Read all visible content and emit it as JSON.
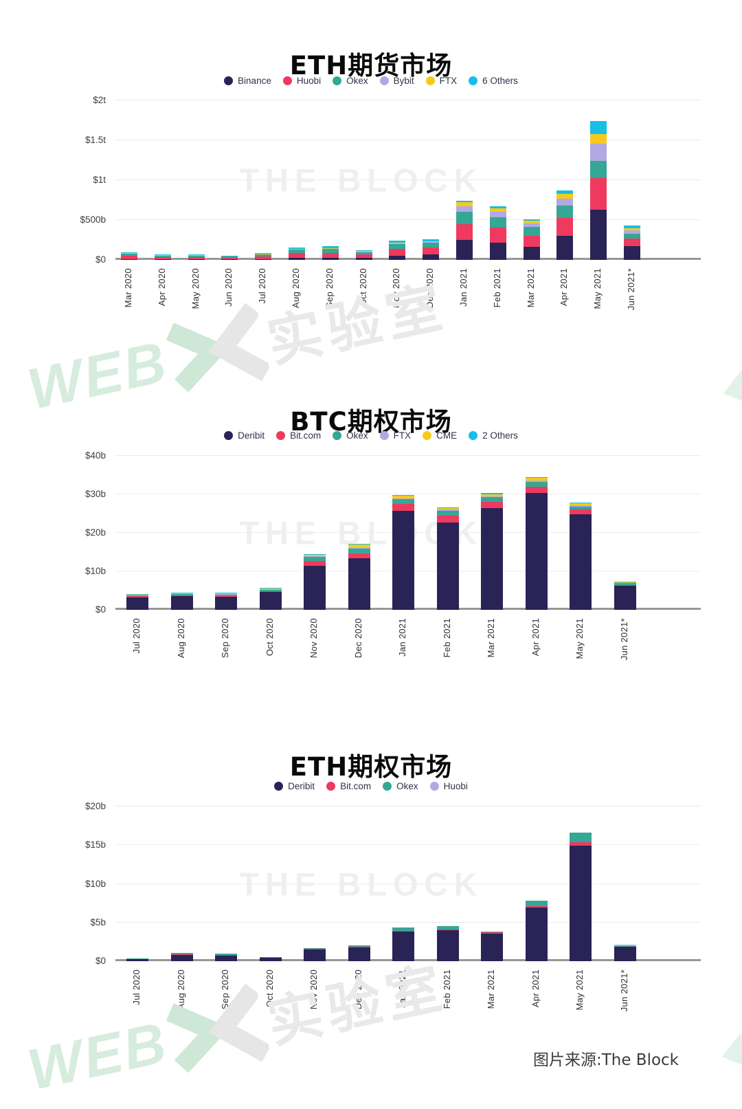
{
  "page": {
    "source_note": "图片来源:The Block",
    "block_watermark": "THE BLOCK",
    "webx_watermark": {
      "web": "WEB",
      "lab": "实验室"
    }
  },
  "colors": {
    "navy": "#2a2356",
    "pink": "#ee3a5e",
    "teal": "#35a795",
    "lavender": "#b2a9e2",
    "yellow": "#f6ca1c",
    "cyan": "#16bfe6",
    "gridline": "#ececec",
    "axis_line": "#979797"
  },
  "chart_data": [
    {
      "type": "bar",
      "stacked": true,
      "title": "ETH期货市场",
      "unit": "USD billions",
      "legend_position": "top",
      "grid": true,
      "ylim": [
        0,
        2000
      ],
      "yticks": [
        {
          "label": "$2t",
          "value": 2000
        },
        {
          "label": "$1.5t",
          "value": 1500
        },
        {
          "label": "$1t",
          "value": 1000
        },
        {
          "label": "$500b",
          "value": 500
        },
        {
          "label": "$0",
          "value": 0
        }
      ],
      "categories": [
        "Mar 2020",
        "Apr 2020",
        "May 2020",
        "Jun 2020",
        "Jul 2020",
        "Aug 2020",
        "Sep 2020",
        "Oct 2020",
        "Nov 2020",
        "Dec 2020",
        "Jan 2021",
        "Feb 2021",
        "Mar 2021",
        "Apr 2021",
        "May 2021",
        "Jun 2021*"
      ],
      "series": [
        {
          "name": "Binance",
          "color": "#2a2356",
          "values": [
            8,
            7,
            7,
            6,
            10,
            25,
            30,
            22,
            55,
            70,
            250,
            215,
            165,
            300,
            630,
            175
          ]
        },
        {
          "name": "Huobi",
          "color": "#ee3a5e",
          "values": [
            40,
            28,
            28,
            22,
            35,
            60,
            60,
            45,
            85,
            85,
            200,
            190,
            140,
            230,
            400,
            90
          ]
        },
        {
          "name": "Okex",
          "color": "#35a795",
          "values": [
            35,
            22,
            24,
            18,
            28,
            45,
            45,
            35,
            60,
            60,
            150,
            130,
            105,
            155,
            215,
            60
          ]
        },
        {
          "name": "Bybit",
          "color": "#b2a9e2",
          "values": [
            0,
            0,
            0,
            0,
            0,
            5,
            8,
            5,
            10,
            12,
            70,
            65,
            45,
            80,
            215,
            45
          ]
        },
        {
          "name": "FTX",
          "color": "#f6ca1c",
          "values": [
            2,
            2,
            2,
            2,
            3,
            5,
            7,
            4,
            8,
            8,
            50,
            45,
            35,
            60,
            120,
            30
          ]
        },
        {
          "name": "6 Others",
          "color": "#16bfe6",
          "values": [
            12,
            10,
            10,
            7,
            10,
            15,
            25,
            10,
            20,
            25,
            20,
            30,
            20,
            45,
            160,
            35
          ]
        }
      ]
    },
    {
      "type": "bar",
      "stacked": true,
      "title": "BTC期权市场",
      "unit": "USD billions",
      "legend_position": "top",
      "grid": true,
      "ylim": [
        0,
        40
      ],
      "yticks": [
        {
          "label": "$40b",
          "value": 40
        },
        {
          "label": "$30b",
          "value": 30
        },
        {
          "label": "$20b",
          "value": 20
        },
        {
          "label": "$10b",
          "value": 10
        },
        {
          "label": "$0",
          "value": 0
        }
      ],
      "categories": [
        "Jul 2020",
        "Aug 2020",
        "Sep 2020",
        "Oct 2020",
        "Nov 2020",
        "Dec 2020",
        "Jan 2021",
        "Feb 2021",
        "Mar 2021",
        "Apr 2021",
        "May 2021",
        "Jun 2021*"
      ],
      "series": [
        {
          "name": "Deribit",
          "color": "#2a2356",
          "values": [
            3.3,
            3.6,
            3.4,
            4.6,
            11.5,
            13.4,
            25.8,
            22.7,
            26.5,
            30.4,
            24.8,
            6.2
          ]
        },
        {
          "name": "Bit.com",
          "color": "#ee3a5e",
          "values": [
            0.2,
            0.1,
            0.2,
            0.2,
            1.2,
            1.2,
            1.7,
            1.8,
            1.5,
            1.6,
            1.2,
            0.3
          ]
        },
        {
          "name": "Okex",
          "color": "#35a795",
          "values": [
            0.4,
            0.5,
            0.4,
            0.5,
            1.0,
            1.3,
            1.2,
            1.2,
            1.2,
            1.2,
            0.8,
            0.5
          ]
        },
        {
          "name": "FTX",
          "color": "#b2a9e2",
          "values": [
            0.05,
            0.05,
            0.1,
            0.1,
            0.2,
            0.2,
            0.3,
            0.3,
            0.3,
            0.4,
            0.3,
            0.1
          ]
        },
        {
          "name": "CME",
          "color": "#f6ca1c",
          "values": [
            0.05,
            0.1,
            0.3,
            0.3,
            0.5,
            0.8,
            0.6,
            0.4,
            0.5,
            0.6,
            0.5,
            0.1
          ]
        },
        {
          "name": "2 Others",
          "color": "#16bfe6",
          "values": [
            0.05,
            0.05,
            0.1,
            0.1,
            0.1,
            0.2,
            0.2,
            0.2,
            0.3,
            0.3,
            0.2,
            0.2
          ]
        }
      ]
    },
    {
      "type": "bar",
      "stacked": true,
      "title": "ETH期权市场",
      "unit": "USD billions",
      "legend_position": "top",
      "grid": true,
      "ylim": [
        0,
        20
      ],
      "yticks": [
        {
          "label": "$20b",
          "value": 20
        },
        {
          "label": "$15b",
          "value": 15
        },
        {
          "label": "$10b",
          "value": 10
        },
        {
          "label": "$5b",
          "value": 5
        },
        {
          "label": "$0",
          "value": 0
        }
      ],
      "categories": [
        "Jul 2020",
        "Aug 2020",
        "Sep 2020",
        "Oct 2020",
        "Nov 2020",
        "Dec 2020",
        "Jan 2021",
        "Feb 2021",
        "Mar 2021",
        "Apr 2021",
        "May 2021",
        "Jun 2021*"
      ],
      "series": [
        {
          "name": "Deribit",
          "color": "#2a2356",
          "values": [
            0.35,
            0.9,
            0.8,
            0.5,
            1.55,
            1.85,
            3.9,
            4.0,
            3.6,
            6.9,
            14.9,
            1.9
          ]
        },
        {
          "name": "Bit.com",
          "color": "#ee3a5e",
          "values": [
            0,
            0.02,
            0.02,
            0.01,
            0.03,
            0.04,
            0.05,
            0.05,
            0.12,
            0.25,
            0.5,
            0.05
          ]
        },
        {
          "name": "Okex",
          "color": "#35a795",
          "values": [
            0.03,
            0.12,
            0.12,
            0.04,
            0.15,
            0.15,
            0.4,
            0.45,
            0.1,
            0.65,
            1.2,
            0.05
          ]
        },
        {
          "name": "Huobi",
          "color": "#b2a9e2",
          "values": [
            0,
            0,
            0,
            0,
            0,
            0,
            0,
            0,
            0,
            0,
            0,
            0.1
          ]
        }
      ]
    }
  ]
}
